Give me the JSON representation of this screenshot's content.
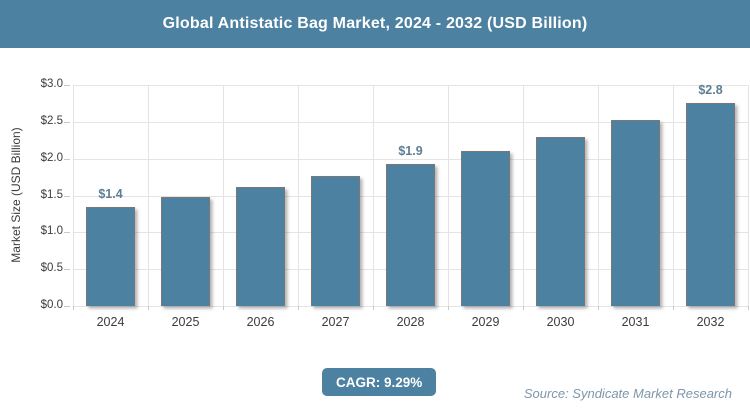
{
  "header": {
    "title": "Global Antistatic Bag Market, 2024 - 2032 (USD Billion)"
  },
  "chart_data": {
    "type": "bar",
    "title": "Global Antistatic Bag Market, 2024 - 2032 (USD Billion)",
    "categories": [
      "2024",
      "2025",
      "2026",
      "2027",
      "2028",
      "2029",
      "2030",
      "2031",
      "2032"
    ],
    "values": [
      1.35,
      1.48,
      1.61,
      1.76,
      1.93,
      2.11,
      2.3,
      2.52,
      2.76
    ],
    "bar_labels": [
      "$1.4",
      "",
      "",
      "",
      "$1.9",
      "",
      "",
      "",
      "$2.8"
    ],
    "xlabel": "",
    "ylabel": "Market Size (USD Billion)",
    "ylim": [
      0,
      3.0
    ],
    "ytick_step": 0.5,
    "ytick_labels": [
      "$0.0",
      "$0.5",
      "$1.0",
      "$1.5",
      "$2.0",
      "$2.5",
      "$3.0"
    ],
    "grid": true,
    "legend": false,
    "bar_color": "#4C81A1"
  },
  "footer": {
    "cagr_label": "CAGR: 9.29%",
    "source": "Source: Syndicate Market Research"
  },
  "colors": {
    "accent": "#4C81A1",
    "grid": "#e4e4e4",
    "axis_text": "#3c3c3c",
    "bar_label": "#5E7E95",
    "source_text": "#7E96AB",
    "title_text": "#ffffff",
    "background": "#ffffff"
  }
}
